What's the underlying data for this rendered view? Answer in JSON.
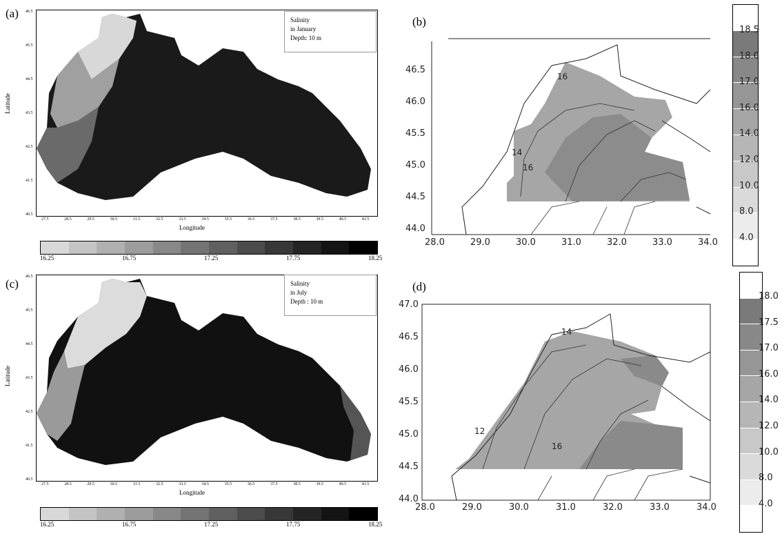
{
  "panels": {
    "a": {
      "label": "(a)",
      "legend": [
        "Salinity",
        "in January",
        "Depth:  10  m"
      ],
      "xlabel": "Longitude",
      "ylabel": "Latitude",
      "xticks": [
        "27.5",
        "28.5",
        "29.5",
        "30.5",
        "31.5",
        "32.5",
        "33.5",
        "34.5",
        "35.5",
        "36.5",
        "37.5",
        "38.5",
        "39.5",
        "40.5",
        "41.5"
      ],
      "yticks": [
        "46.5",
        "45.5",
        "44.5",
        "43.5",
        "42.5",
        "41.5",
        "40.5"
      ],
      "colorbar_ticks": [
        "16.25",
        "16.75",
        "17.25",
        "17.75",
        "18.25"
      ]
    },
    "b": {
      "label": "(b)",
      "xticks": [
        "28.0",
        "29.0",
        "30.0",
        "31.0",
        "32.0",
        "33.0",
        "34.0"
      ],
      "yticks": [
        "46.5",
        "46.0",
        "45.5",
        "45.0",
        "44.5",
        "44.0"
      ],
      "contour_labels": [
        "14",
        "16",
        "16"
      ],
      "colorbar_labels": [
        "18.5",
        "18.0",
        "17.0",
        "16.0",
        "14.0",
        "12.0",
        "10.0",
        "8.0",
        "4.0"
      ]
    },
    "c": {
      "label": "(c)",
      "legend": [
        "Salinity",
        "in July",
        "Depth :  10  m"
      ],
      "xlabel": "Longitude",
      "ylabel": "Latitude",
      "xticks": [
        "27.5",
        "28.5",
        "29.5",
        "30.5",
        "31.5",
        "32.5",
        "33.5",
        "34.5",
        "35.5",
        "36.5",
        "37.5",
        "38.5",
        "39.5",
        "40.5",
        "41.5"
      ],
      "yticks": [
        "46.5",
        "45.5",
        "44.5",
        "43.5",
        "42.5",
        "41.5",
        "40.5"
      ],
      "colorbar_ticks": [
        "16.25",
        "16.75",
        "17.25",
        "17.75",
        "18.25"
      ]
    },
    "d": {
      "label": "(d)",
      "xticks": [
        "28.0",
        "29.0",
        "30.0",
        "31.0",
        "32.0",
        "33.0",
        "34.0"
      ],
      "yticks": [
        "47.0",
        "46.5",
        "46.0",
        "45.5",
        "45.0",
        "44.5",
        "44.0"
      ],
      "contour_labels": [
        "14",
        "16",
        "12"
      ],
      "colorbar_labels": [
        "18.0",
        "17.5",
        "17.0",
        "16.0",
        "14.0",
        "12.0",
        "10.0",
        "8.0",
        "4.0"
      ]
    }
  },
  "colors": {
    "scale": [
      "#d8d8d8",
      "#c4c4c4",
      "#b0b0b0",
      "#9c9c9c",
      "#888888",
      "#747474",
      "#606060",
      "#4c4c4c",
      "#383838",
      "#242424",
      "#141414",
      "#000000"
    ],
    "shelf_fill": "#a6a6a6",
    "shelf_dark": "#8a8a8a"
  }
}
